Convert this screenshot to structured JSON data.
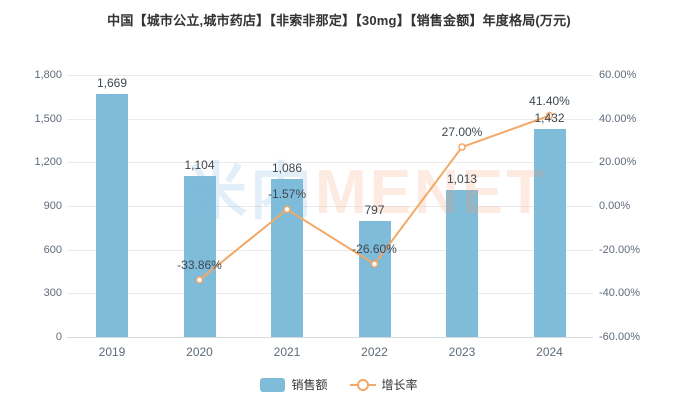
{
  "title": "中国【城市公立,城市药店】【非索非那定】【30mg】【销售金额】年度格局(万元)",
  "watermark": {
    "cn": "米内",
    "en": "MENET"
  },
  "legend": {
    "sales_label": "销售额",
    "growth_label": "增长率"
  },
  "colors": {
    "bar": "#7FBCD9",
    "line": "#F2A866",
    "marker_fill": "#FFFFFF",
    "grid": "#EAEAEA",
    "zero_axis": "#D5DADE",
    "axis_text": "#5E6B7B",
    "label_text": "#3F474F",
    "title_text": "#333333",
    "watermark_cn": "rgba(125,180,225,0.22)",
    "watermark_en": "rgba(245,150,105,0.20)"
  },
  "chart_data": {
    "type": "bar-line-combo",
    "title": "中国【城市公立,城市药店】【非索非那定】【30mg】【销售金额】年度格局(万元)",
    "categories": [
      "2019",
      "2020",
      "2021",
      "2022",
      "2023",
      "2024"
    ],
    "series": [
      {
        "name": "销售额",
        "type": "bar",
        "axis": "left",
        "values": [
          1669,
          1104,
          1086,
          797,
          1013,
          1432
        ],
        "labels": [
          "1,669",
          "1,104",
          "1,086",
          "797",
          "1,013",
          "1,432"
        ]
      },
      {
        "name": "增长率",
        "type": "line",
        "axis": "right",
        "values": [
          null,
          -33.86,
          -1.57,
          -26.6,
          27.0,
          41.4
        ],
        "labels": [
          null,
          "-33.86%",
          "-1.57%",
          "-26.60%",
          "27.00%",
          "41.40%"
        ]
      }
    ],
    "left_axis": {
      "min": 0,
      "max": 1800,
      "step": 300,
      "tick_labels": [
        "0",
        "300",
        "600",
        "900",
        "1,200",
        "1,500",
        "1,800"
      ]
    },
    "right_axis": {
      "min": -60,
      "max": 60,
      "step": 20,
      "tick_labels": [
        "-60.00%",
        "-40.00%",
        "-20.00%",
        "0.00%",
        "20.00%",
        "40.00%",
        "60.00%"
      ]
    },
    "grid": true,
    "legend_position": "bottom"
  }
}
